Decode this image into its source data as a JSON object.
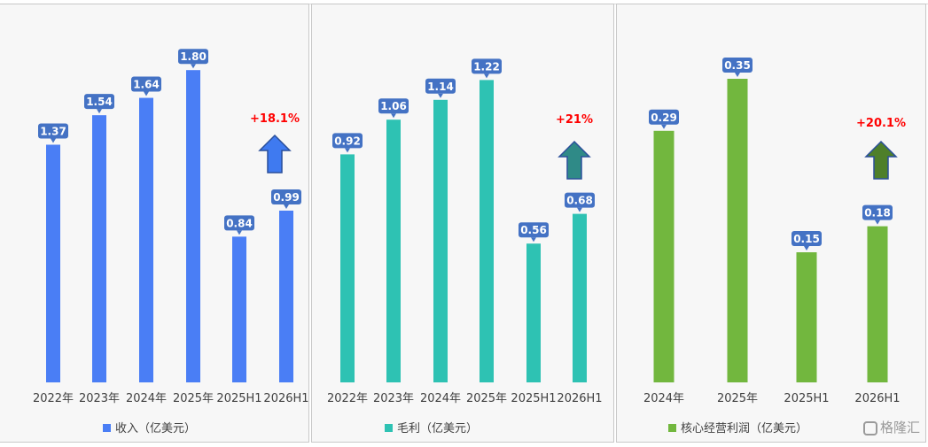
{
  "charts": [
    {
      "color": "#4a7ef5",
      "arrow_color": "#3f7af0",
      "growth_label": "+18.1%",
      "chart_data": {
        "type": "bar",
        "categories": [
          "2022年",
          "2023年",
          "2024年",
          "2025年",
          "2025H1",
          "2026H1"
        ],
        "values": [
          1.37,
          1.54,
          1.64,
          1.8,
          0.84,
          0.99
        ],
        "value_labels": [
          "1.37",
          "1.54",
          "1.64",
          "1.80",
          "0.84",
          "0.99"
        ],
        "series": [
          {
            "name": "收入（亿美元）",
            "values": [
              1.37,
              1.54,
              1.64,
              1.8,
              0.84,
              0.99
            ]
          }
        ],
        "ylim": [
          0,
          2.0
        ],
        "grid": false,
        "legend": "bottom"
      }
    },
    {
      "color": "#2ec2b3",
      "arrow_color": "#2f8a87",
      "growth_label": "+21%",
      "chart_data": {
        "type": "bar",
        "categories": [
          "2022年",
          "2023年",
          "2024年",
          "2025年",
          "2025H1",
          "2026H1"
        ],
        "values": [
          0.92,
          1.06,
          1.14,
          1.22,
          0.56,
          0.68
        ],
        "value_labels": [
          "0.92",
          "1.06",
          "1.14",
          "1.22",
          "0.56",
          "0.68"
        ],
        "series": [
          {
            "name": "毛利（亿美元）",
            "values": [
              0.92,
              1.06,
              1.14,
              1.22,
              0.56,
              0.68
            ]
          }
        ],
        "ylim": [
          0,
          1.4
        ],
        "grid": false,
        "legend": "bottom"
      }
    },
    {
      "color": "#72b73e",
      "arrow_color": "#4e7f2a",
      "growth_label": "+20.1%",
      "chart_data": {
        "type": "bar",
        "categories": [
          "2024年",
          "2025年",
          "2025H1",
          "2026H1"
        ],
        "values": [
          0.29,
          0.35,
          0.15,
          0.18
        ],
        "value_labels": [
          "0.29",
          "0.35",
          "0.15",
          "0.18"
        ],
        "series": [
          {
            "name": "核心经营利润（亿美元）",
            "values": [
              0.29,
              0.35,
              0.15,
              0.18
            ]
          }
        ],
        "ylim": [
          0,
          0.4
        ],
        "grid": false,
        "legend": "bottom"
      }
    }
  ],
  "watermark": "格隆汇",
  "label_bg": "#4472c4",
  "growth_color": "#ff0000"
}
